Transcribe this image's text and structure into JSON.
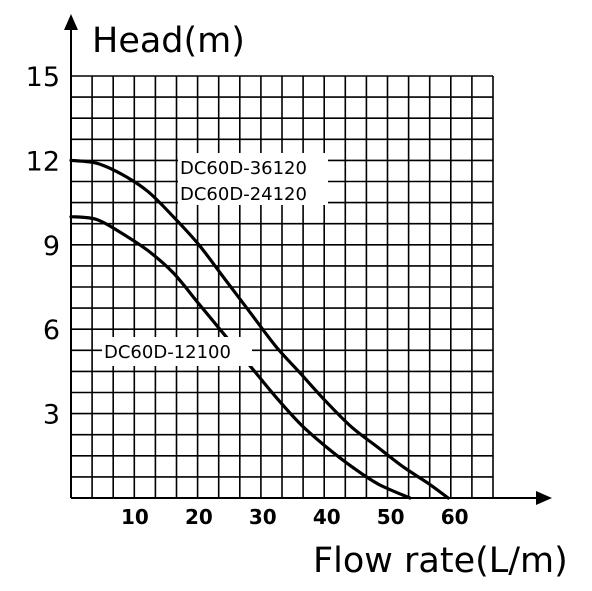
{
  "chart_data": {
    "type": "line",
    "title": "",
    "ylabel": "Head(m)",
    "xlabel": "Flow rate(L/m)",
    "xlim": [
      0,
      66
    ],
    "ylim": [
      0,
      15
    ],
    "x_ticks": [
      10,
      20,
      30,
      40,
      50,
      60
    ],
    "y_ticks": [
      3,
      6,
      9,
      12,
      15
    ],
    "grid": true,
    "colors": {
      "line": "#000000",
      "grid": "#000000",
      "background": "#ffffff"
    },
    "series": [
      {
        "name": "DC60D-36120 / DC60D-24120",
        "labels": [
          "DC60D-36120",
          "DC60D-24120"
        ],
        "points": [
          [
            0,
            12.0
          ],
          [
            4,
            11.9
          ],
          [
            8,
            11.5
          ],
          [
            12,
            10.9
          ],
          [
            16,
            10.0
          ],
          [
            20,
            9.0
          ],
          [
            24,
            7.8
          ],
          [
            28,
            6.6
          ],
          [
            32,
            5.4
          ],
          [
            36,
            4.4
          ],
          [
            40,
            3.4
          ],
          [
            44,
            2.5
          ],
          [
            48,
            1.8
          ],
          [
            52,
            1.1
          ],
          [
            56,
            0.5
          ],
          [
            59,
            0.0
          ]
        ]
      },
      {
        "name": "DC60D-12100",
        "labels": [
          "DC60D-12100"
        ],
        "points": [
          [
            0,
            10.0
          ],
          [
            4,
            9.9
          ],
          [
            8,
            9.4
          ],
          [
            12,
            8.8
          ],
          [
            16,
            8.0
          ],
          [
            20,
            6.9
          ],
          [
            24,
            5.8
          ],
          [
            28,
            4.7
          ],
          [
            32,
            3.6
          ],
          [
            36,
            2.6
          ],
          [
            40,
            1.8
          ],
          [
            44,
            1.1
          ],
          [
            48,
            0.5
          ],
          [
            53,
            0.0
          ]
        ]
      }
    ]
  }
}
